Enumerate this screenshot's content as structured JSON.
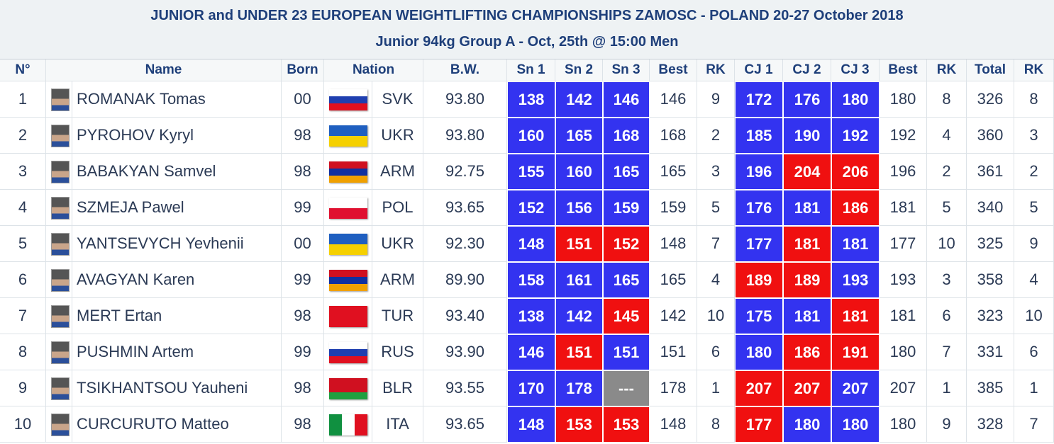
{
  "header": {
    "title": "JUNIOR and UNDER 23 EUROPEAN WEIGHTLIFTING CHAMPIONSHIPS ZAMOSC - POLAND 20-27 October 2018",
    "subtitle": "Junior 94kg Group A - Oct, 25th @ 15:00 Men"
  },
  "table": {
    "columns": [
      "N°",
      "Name",
      "Born",
      "Nation",
      "B.W.",
      "Sn 1",
      "Sn 2",
      "Sn 3",
      "Best",
      "RK",
      "CJ 1",
      "CJ 2",
      "CJ 3",
      "Best",
      "RK",
      "Total",
      "RK"
    ],
    "rows": [
      {
        "cells": [
          "1",
          "ROMANAK Tomas",
          "00",
          "SVK",
          "93.80",
          "138",
          "142",
          "146",
          "146",
          "9",
          "172",
          "176",
          "180",
          "180",
          "8",
          "326",
          "8"
        ],
        "attempt_colors": [
          "#3333f0",
          "#3333f0",
          "#3333f0",
          "#3333f0",
          "#3333f0",
          "#3333f0"
        ],
        "flag": {
          "dir": "h",
          "colors": [
            "#ffffff",
            "#1f3fb0",
            "#e01020"
          ]
        }
      },
      {
        "cells": [
          "2",
          "PYROHOV Kyryl",
          "98",
          "UKR",
          "93.80",
          "160",
          "165",
          "168",
          "168",
          "2",
          "185",
          "190",
          "192",
          "192",
          "4",
          "360",
          "3"
        ],
        "attempt_colors": [
          "#3333f0",
          "#3333f0",
          "#3333f0",
          "#3333f0",
          "#3333f0",
          "#3333f0"
        ],
        "flag": {
          "dir": "h",
          "colors": [
            "#1f5fc0",
            "#f5d000"
          ]
        }
      },
      {
        "cells": [
          "3",
          "BABAKYAN Samvel",
          "98",
          "ARM",
          "92.75",
          "155",
          "160",
          "165",
          "165",
          "3",
          "196",
          "204",
          "206",
          "196",
          "2",
          "361",
          "2"
        ],
        "attempt_colors": [
          "#3333f0",
          "#3333f0",
          "#3333f0",
          "#3333f0",
          "#f01010",
          "#f01010"
        ],
        "flag": {
          "dir": "h",
          "colors": [
            "#d01020",
            "#1030a0",
            "#f0a000"
          ]
        }
      },
      {
        "cells": [
          "4",
          "SZMEJA Pawel",
          "99",
          "POL",
          "93.65",
          "152",
          "156",
          "159",
          "159",
          "5",
          "176",
          "181",
          "186",
          "181",
          "5",
          "340",
          "5"
        ],
        "attempt_colors": [
          "#3333f0",
          "#3333f0",
          "#3333f0",
          "#3333f0",
          "#3333f0",
          "#f01010"
        ],
        "flag": {
          "dir": "h",
          "colors": [
            "#ffffff",
            "#e01030"
          ]
        }
      },
      {
        "cells": [
          "5",
          "YANTSEVYCH Yevhenii",
          "00",
          "UKR",
          "92.30",
          "148",
          "151",
          "152",
          "148",
          "7",
          "177",
          "181",
          "181",
          "177",
          "10",
          "325",
          "9"
        ],
        "attempt_colors": [
          "#3333f0",
          "#f01010",
          "#f01010",
          "#3333f0",
          "#f01010",
          "#3333f0"
        ],
        "flag": {
          "dir": "h",
          "colors": [
            "#1f5fc0",
            "#f5d000"
          ]
        }
      },
      {
        "cells": [
          "6",
          "AVAGYAN Karen",
          "99",
          "ARM",
          "89.90",
          "158",
          "161",
          "165",
          "165",
          "4",
          "189",
          "189",
          "193",
          "193",
          "3",
          "358",
          "4"
        ],
        "attempt_colors": [
          "#3333f0",
          "#3333f0",
          "#3333f0",
          "#f01010",
          "#f01010",
          "#3333f0"
        ],
        "flag": {
          "dir": "h",
          "colors": [
            "#d01020",
            "#1030a0",
            "#f0a000"
          ]
        }
      },
      {
        "cells": [
          "7",
          "MERT Ertan",
          "98",
          "TUR",
          "93.40",
          "138",
          "142",
          "145",
          "142",
          "10",
          "175",
          "181",
          "181",
          "181",
          "6",
          "323",
          "10"
        ],
        "attempt_colors": [
          "#3333f0",
          "#3333f0",
          "#f01010",
          "#3333f0",
          "#3333f0",
          "#f01010"
        ],
        "flag": {
          "dir": "h",
          "colors": [
            "#e01020"
          ]
        }
      },
      {
        "cells": [
          "8",
          "PUSHMIN Artem",
          "99",
          "RUS",
          "93.90",
          "146",
          "151",
          "151",
          "151",
          "6",
          "180",
          "186",
          "191",
          "180",
          "7",
          "331",
          "6"
        ],
        "attempt_colors": [
          "#3333f0",
          "#f01010",
          "#3333f0",
          "#3333f0",
          "#f01010",
          "#f01010"
        ],
        "flag": {
          "dir": "h",
          "colors": [
            "#ffffff",
            "#1f3fb0",
            "#e01020"
          ]
        }
      },
      {
        "cells": [
          "9",
          "TSIKHANTSOU Yauheni",
          "98",
          "BLR",
          "93.55",
          "170",
          "178",
          "---",
          "178",
          "1",
          "207",
          "207",
          "207",
          "207",
          "1",
          "385",
          "1"
        ],
        "attempt_colors": [
          "#3333f0",
          "#3333f0",
          "#8a8a8a",
          "#f01010",
          "#f01010",
          "#3333f0"
        ],
        "flag": {
          "dir": "h",
          "colors": [
            "#d01020",
            "#d01020",
            "#20a040"
          ]
        }
      },
      {
        "cells": [
          "10",
          "CURCURUTO Matteo",
          "98",
          "ITA",
          "93.65",
          "148",
          "153",
          "153",
          "148",
          "8",
          "177",
          "180",
          "180",
          "180",
          "9",
          "328",
          "7"
        ],
        "attempt_colors": [
          "#3333f0",
          "#f01010",
          "#f01010",
          "#f01010",
          "#3333f0",
          "#3333f0"
        ],
        "flag": {
          "dir": "v",
          "colors": [
            "#109040",
            "#ffffff",
            "#e01020"
          ]
        }
      }
    ]
  }
}
